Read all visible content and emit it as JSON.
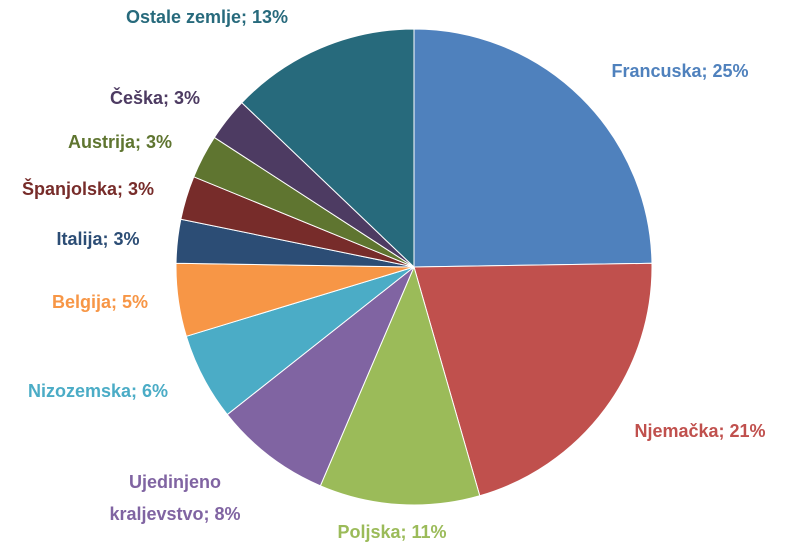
{
  "chart_data": {
    "type": "pie",
    "values": [
      25,
      21,
      11,
      8,
      6,
      5,
      3,
      3,
      3,
      3,
      13
    ],
    "value_labels": [
      "Francuska; 25%",
      "Njemačka; 21%",
      "Poljska; 11%",
      "Ujedinjeno kraljevstvo; 8%",
      "Nizozemska; 6%",
      "Belgija; 5%",
      "Italija; 3%",
      "Španjolska; 3%",
      "Austrija; 3%",
      "Češka; 3%",
      "Ostale zemlje; 13%"
    ],
    "colors": [
      "#4f81bd",
      "#c0504d",
      "#9bbb59",
      "#8064a2",
      "#4bacc6",
      "#f79646",
      "#2c4d75",
      "#772c2a",
      "#5f7530",
      "#4d3b62",
      "#276a7c"
    ]
  }
}
